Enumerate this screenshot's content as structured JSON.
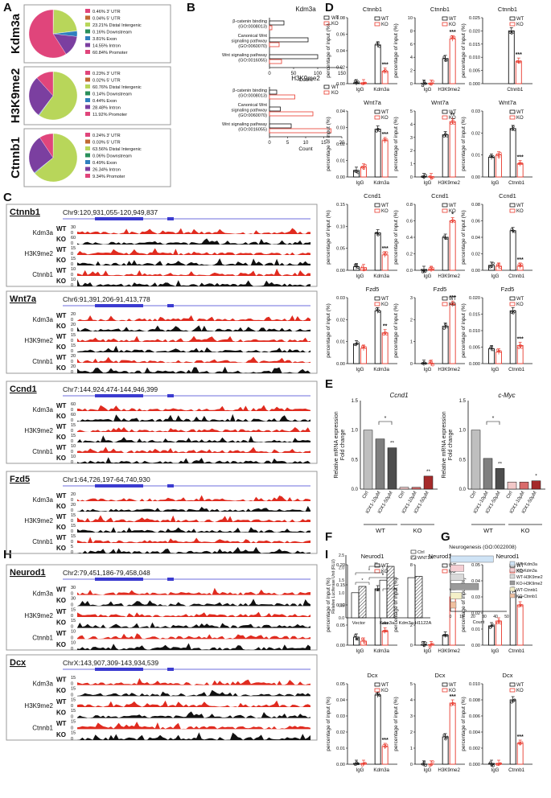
{
  "colors": {
    "wt": "#111111",
    "ko": "#e8392d",
    "pie_utr3": "#e0457b",
    "pie_utr5": "#c06a32",
    "pie_intergenic": "#b8d65a",
    "pie_downstream": "#2a8f5b",
    "pie_exon": "#2f7fbf",
    "pie_intron": "#7b3fa0",
    "pie_promoter": "#e0457b",
    "track_red": "#e02b1f",
    "track_black": "#111111",
    "bar_grey1": "#bfbfbf",
    "bar_grey2": "#7f7f7f",
    "bar_grey3": "#4d4d4d",
    "bar_red1": "#f2c8c8",
    "bar_red2": "#d96a6a",
    "bar_red3": "#a52a2a",
    "blue_gene": "#3b3bd0"
  },
  "panels": {
    "A": "A",
    "B": "B",
    "C": "C",
    "D": "D",
    "E": "E",
    "F": "F",
    "G": "G",
    "H": "H",
    "I": "I"
  },
  "pies": [
    {
      "label": "Kdm3a",
      "slices": [
        {
          "name": "3' UTR",
          "value": 0.46,
          "text": "0.46%"
        },
        {
          "name": "5' UTR",
          "value": 0.04,
          "text": "0.04%"
        },
        {
          "name": "Distal Intergenic",
          "value": 23.21,
          "text": "23.21%"
        },
        {
          "name": "Downstream",
          "value": 0.16,
          "text": "0.16%"
        },
        {
          "name": "Exon",
          "value": 3.81,
          "text": "3.81%"
        },
        {
          "name": "Intron",
          "value": 14.55,
          "text": "14.55%"
        },
        {
          "name": "Promoter",
          "value": 60.84,
          "text": "60.84%"
        }
      ]
    },
    {
      "label": "H3K9me2",
      "slices": [
        {
          "name": "3' UTR",
          "value": 0.23,
          "text": "0.23%"
        },
        {
          "name": "5' UTR",
          "value": 0.02,
          "text": "0.02%"
        },
        {
          "name": "Distal Intergenic",
          "value": 60.76,
          "text": "60.76%"
        },
        {
          "name": "Downstream",
          "value": 0.14,
          "text": "0.14%"
        },
        {
          "name": "Exon",
          "value": 0.44,
          "text": "0.44%"
        },
        {
          "name": "Intron",
          "value": 28.48,
          "text": "28.48%"
        },
        {
          "name": "Promoter",
          "value": 11.92,
          "text": "11.92%"
        }
      ]
    },
    {
      "label": "Ctnnb1",
      "slices": [
        {
          "name": "3' UTR",
          "value": 0.24,
          "text": "0.24%"
        },
        {
          "name": "5' UTR",
          "value": 0.03,
          "text": "0.03%"
        },
        {
          "name": "Distal Intergenic",
          "value": 63.56,
          "text": "63.56%"
        },
        {
          "name": "Downstream",
          "value": 0.06,
          "text": "0.06%"
        },
        {
          "name": "Exon",
          "value": 0.49,
          "text": "0.49%"
        },
        {
          "name": "Intron",
          "value": 26.34,
          "text": "26.34%"
        },
        {
          "name": "Promoter",
          "value": 9.34,
          "text": "9.34%"
        }
      ]
    }
  ],
  "go": [
    {
      "title": "Kdm3a",
      "xlabel": "Count",
      "ticks": [
        "0",
        "50",
        "100",
        "150"
      ],
      "max": 150,
      "terms": [
        {
          "lines": [
            "β-catenin binding",
            "(GO:0008013)"
          ],
          "wt": 30,
          "ko": 5
        },
        {
          "lines": [
            "Canonical Wnt",
            "signaling pathway",
            "(GO:0060070)"
          ],
          "wt": 80,
          "ko": 20
        },
        {
          "lines": [
            "Wnt signaling pathway",
            "(GO:0016055)"
          ],
          "wt": 100,
          "ko": 25
        }
      ]
    },
    {
      "title": "H3K9me2",
      "xlabel": "Count",
      "ticks": [
        "0",
        "5",
        "10",
        "15",
        "20"
      ],
      "max": 20,
      "terms": [
        {
          "lines": [
            "β-catenin binding",
            "(GO:0008013)"
          ],
          "wt": 2,
          "ko": 7
        },
        {
          "lines": [
            "Canonical Wnt",
            "signaling pathway",
            "(GO:0060070)"
          ],
          "wt": 3,
          "ko": 12
        },
        {
          "lines": [
            "Wnt signaling pathway",
            "(GO:0016055)"
          ],
          "wt": 6,
          "ko": 17
        }
      ]
    }
  ],
  "legend": {
    "wt": "WT",
    "ko": "KO"
  },
  "chart_data": [
    {
      "type": "bar",
      "panel": "D",
      "gene": "Ctnnb1",
      "ylabel": "percentage of input (%)",
      "ylim": [
        0,
        0.08
      ],
      "yticks": [
        "0.00",
        "0.02",
        "0.04",
        "0.06",
        "0.08"
      ],
      "categories": [
        "IgG",
        "Kdm3a"
      ],
      "wt": [
        0.001,
        0.047
      ],
      "ko": [
        0.001,
        0.015
      ],
      "sig": [
        "",
        "***"
      ]
    },
    {
      "type": "bar",
      "panel": "D",
      "gene": "Ctnnb1",
      "ylabel": "percentage of input (%)",
      "ylim": [
        0,
        10
      ],
      "yticks": [
        "0",
        "2",
        "4",
        "6",
        "8",
        "10"
      ],
      "categories": [
        "IgG",
        "H3K9me2"
      ],
      "wt": [
        0.05,
        3.8
      ],
      "ko": [
        0.05,
        6.8
      ],
      "sig": [
        "",
        "***"
      ]
    },
    {
      "type": "bar",
      "panel": "D",
      "gene": "Ctnnb1",
      "ylabel": "percentage of input (%)",
      "ylim": [
        0,
        0.025
      ],
      "yticks": [
        "0.000",
        "0.005",
        "0.010",
        "0.015",
        "0.020",
        "0.025"
      ],
      "categories": [
        "Ctnnb1"
      ],
      "wt": [
        0.02
      ],
      "ko": [
        0.0085
      ],
      "sig": [
        "***"
      ]
    },
    {
      "type": "bar",
      "panel": "D",
      "gene": "Wnt7a",
      "ylabel": "percentage of input (%)",
      "ylim": [
        0,
        0.04
      ],
      "yticks": [
        "0.00",
        "0.01",
        "0.02",
        "0.03",
        "0.04"
      ],
      "categories": [
        "IgG",
        "Kdm3a"
      ],
      "wt": [
        0.004,
        0.029
      ],
      "ko": [
        0.006,
        0.022
      ],
      "sig": [
        "",
        "***"
      ]
    },
    {
      "type": "bar",
      "panel": "D",
      "gene": "Wnt7a",
      "ylabel": "percentage of input (%)",
      "ylim": [
        0,
        5
      ],
      "yticks": [
        "0",
        "1",
        "2",
        "3",
        "4",
        "5"
      ],
      "categories": [
        "IgG",
        "H3K9me2"
      ],
      "wt": [
        0.02,
        3.2
      ],
      "ko": [
        0.02,
        4.2
      ],
      "sig": [
        "",
        "**"
      ]
    },
    {
      "type": "bar",
      "panel": "D",
      "gene": "Wnt7a",
      "ylabel": "percentage of input (%)",
      "ylim": [
        0,
        0.03
      ],
      "yticks": [
        "0.00",
        "0.01",
        "0.02",
        "0.03"
      ],
      "categories": [
        "IgG",
        "Ctnnb1"
      ],
      "wt": [
        0.009,
        0.022
      ],
      "ko": [
        0.01,
        0.006
      ],
      "sig": [
        "",
        "***"
      ]
    },
    {
      "type": "bar",
      "panel": "D",
      "gene": "Ccnd1",
      "ylabel": "percentage of input (%)",
      "ylim": [
        0,
        0.15
      ],
      "yticks": [
        "0.00",
        "0.05",
        "0.10",
        "0.15"
      ],
      "categories": [
        "IgG",
        "Kdm3a"
      ],
      "wt": [
        0.008,
        0.085
      ],
      "ko": [
        0.006,
        0.035
      ],
      "sig": [
        "",
        "***"
      ]
    },
    {
      "type": "bar",
      "panel": "D",
      "gene": "Ccnd1",
      "ylabel": "percentage of input (%)",
      "ylim": [
        0,
        0.8
      ],
      "yticks": [
        "0.0",
        "0.2",
        "0.4",
        "0.6",
        "0.8"
      ],
      "categories": [
        "IgG",
        "H3K9me2"
      ],
      "wt": [
        0.01,
        0.4
      ],
      "ko": [
        0.01,
        0.6
      ],
      "sig": [
        "",
        "*"
      ]
    },
    {
      "type": "bar",
      "panel": "D",
      "gene": "Ccnd1",
      "ylabel": "percentage of input (%)",
      "ylim": [
        0,
        0.08
      ],
      "yticks": [
        "0.00",
        "0.02",
        "0.04",
        "0.06",
        "0.08"
      ],
      "categories": [
        "IgG",
        "Ctnnb1"
      ],
      "wt": [
        0.006,
        0.048
      ],
      "ko": [
        0.005,
        0.005
      ],
      "sig": [
        "",
        "***"
      ]
    },
    {
      "type": "bar",
      "panel": "D",
      "gene": "Fzd5",
      "ylabel": "percentage of input (%)",
      "ylim": [
        0,
        0.03
      ],
      "yticks": [
        "0.00",
        "0.01",
        "0.02",
        "0.03"
      ],
      "categories": [
        "IgG",
        "Kdm3a"
      ],
      "wt": [
        0.009,
        0.024
      ],
      "ko": [
        0.007,
        0.014
      ],
      "sig": [
        "",
        "**"
      ]
    },
    {
      "type": "bar",
      "panel": "D",
      "gene": "Fzd5",
      "ylabel": "percentage of input (%)",
      "ylim": [
        0,
        3
      ],
      "yticks": [
        "0",
        "1",
        "2",
        "3"
      ],
      "categories": [
        "IgG",
        "H3K9me2"
      ],
      "wt": [
        0.01,
        1.7
      ],
      "ko": [
        0.01,
        2.7
      ],
      "sig": [
        "",
        "***"
      ]
    },
    {
      "type": "bar",
      "panel": "D",
      "gene": "Fzd5",
      "ylabel": "percentage of input (%)",
      "ylim": [
        0,
        0.02
      ],
      "yticks": [
        "0.000",
        "0.005",
        "0.010",
        "0.015",
        "0.020"
      ],
      "categories": [
        "IgG",
        "Ctnnb1"
      ],
      "wt": [
        0.0045,
        0.016
      ],
      "ko": [
        0.0035,
        0.0055
      ],
      "sig": [
        "",
        "***"
      ]
    },
    {
      "type": "bar",
      "panel": "I",
      "gene": "Neurod1",
      "ylabel": "percentage of input (%)",
      "ylim": [
        0,
        0.2
      ],
      "yticks": [
        "0.00",
        "0.05",
        "0.10",
        "0.15",
        "0.20"
      ],
      "categories": [
        "IgG",
        "Kdm3a"
      ],
      "wt": [
        0.02,
        0.14
      ],
      "ko": [
        0.01,
        0.035
      ],
      "sig": [
        "",
        "***"
      ]
    },
    {
      "type": "bar",
      "panel": "I",
      "gene": "Neurod1",
      "ylabel": "percentage of input (%)",
      "ylim": [
        0,
        8
      ],
      "yticks": [
        "0",
        "2",
        "4",
        "6",
        "8"
      ],
      "categories": [
        "IgG",
        "H3K9me2"
      ],
      "wt": [
        0.05,
        1.0
      ],
      "ko": [
        0.05,
        4.8
      ],
      "sig": [
        "",
        "***"
      ]
    },
    {
      "type": "bar",
      "panel": "I",
      "gene": "Neurod1",
      "ylabel": "percentage of input (%)",
      "ylim": [
        0,
        0.05
      ],
      "yticks": [
        "0.00",
        "0.01",
        "0.02",
        "0.03",
        "0.04",
        "0.05"
      ],
      "categories": [
        "IgG",
        "Ctnnb1"
      ],
      "wt": [
        0.012,
        0.034
      ],
      "ko": [
        0.015,
        0.025
      ],
      "sig": [
        "",
        "**"
      ]
    },
    {
      "type": "bar",
      "panel": "I",
      "gene": "Dcx",
      "ylabel": "percentage of input (%)",
      "ylim": [
        0,
        0.05
      ],
      "yticks": [
        "0.00",
        "0.01",
        "0.02",
        "0.03",
        "0.04",
        "0.05"
      ],
      "categories": [
        "IgG",
        "Kdm3a"
      ],
      "wt": [
        0.0005,
        0.043
      ],
      "ko": [
        0.0005,
        0.011
      ],
      "sig": [
        "",
        "***"
      ]
    },
    {
      "type": "bar",
      "panel": "I",
      "gene": "Dcx",
      "ylabel": "percentage of input (%)",
      "ylim": [
        0,
        5
      ],
      "yticks": [
        "0",
        "1",
        "2",
        "3",
        "4",
        "5"
      ],
      "categories": [
        "IgG",
        "H3K9me2"
      ],
      "wt": [
        0.01,
        1.7
      ],
      "ko": [
        0.01,
        3.8
      ],
      "sig": [
        "",
        "***"
      ]
    },
    {
      "type": "bar",
      "panel": "I",
      "gene": "Dcx",
      "ylabel": "percentage of input (%)",
      "ylim": [
        0,
        0.01
      ],
      "yticks": [
        "0.000",
        "0.002",
        "0.004",
        "0.006",
        "0.008",
        "0.010"
      ],
      "categories": [
        "IgG",
        "Ctnnb1"
      ],
      "wt": [
        0.0001,
        0.008
      ],
      "ko": [
        0.0001,
        0.0026
      ],
      "sig": [
        "",
        "***"
      ]
    }
  ],
  "panelE": [
    {
      "title": "Ccnd1",
      "ylabel1": "Relative mRNA expression",
      "ylabel2": "Fold change",
      "ylim": [
        0,
        1.5
      ],
      "yticks": [
        "0.0",
        "0.5",
        "1.0",
        "1.5"
      ],
      "categories": [
        "Ctrl",
        "IOX1-10μM",
        "IOX1-50μM",
        "Ctrl",
        "IOX1-10μM",
        "IOX1-50μM"
      ],
      "values": [
        1.0,
        0.85,
        0.7,
        0.03,
        0.03,
        0.22
      ],
      "sig": [
        "",
        "",
        "**",
        "",
        "",
        "**"
      ],
      "bracket": "*",
      "groups": [
        "WT",
        "KO"
      ]
    },
    {
      "title": "c-Myc",
      "ylabel1": "Relative mRNA expression",
      "ylabel2": "Fold change",
      "ylim": [
        0,
        1.5
      ],
      "yticks": [
        "0.0",
        "0.5",
        "1.0",
        "1.5"
      ],
      "categories": [
        "Ctrl",
        "IOX1-10μM",
        "IOX1-50μM",
        "Ctrl",
        "IOX1-10μM",
        "IOX1-50μM"
      ],
      "values": [
        1.0,
        0.52,
        0.35,
        0.12,
        0.12,
        0.14
      ],
      "sig": [
        "",
        "",
        "**",
        "",
        "",
        "*"
      ],
      "bracket": "*",
      "groups": [
        "WT",
        "KO"
      ]
    }
  ],
  "panelF": {
    "ylabel": "Relative Luciferase Unit (RLU)",
    "ylim": [
      0,
      2.5
    ],
    "yticks": [
      "0.0",
      "0.5",
      "1.0",
      "1.5",
      "2.0",
      "2.5"
    ],
    "categories": [
      "Vector",
      "Kdm3a",
      "Kdm3a-H1122A"
    ],
    "ctrl": [
      1.0,
      1.5,
      1.6
    ],
    "wnt": [
      1.25,
      2.05,
      1.65
    ],
    "legend": [
      "Ctrl",
      "WNT3A"
    ],
    "stars": [
      "*",
      "*",
      "**",
      "*",
      "*"
    ]
  },
  "panelG": {
    "title": "Neurogenesis (GO:0022008)",
    "xlabel": "Count",
    "ticks": [
      "0",
      "10",
      "20",
      "30",
      "40",
      "50"
    ],
    "max": 50,
    "series": [
      {
        "name": "WT-Kdm3a",
        "value": 38,
        "color": "#cfe3f5"
      },
      {
        "name": "KO-Kdm3a",
        "value": 12,
        "color": "#f5cfd4"
      },
      {
        "name": "WT-H3K9me2",
        "value": 12,
        "color": "#d9d9d9"
      },
      {
        "name": "KO-H3K9me2",
        "value": 25,
        "color": "#9a9a9a"
      },
      {
        "name": "WT-Ctnnb1",
        "value": 10,
        "color": "#f4f0c8"
      },
      {
        "name": "KO-Ctnnb1",
        "value": 5,
        "color": "#f0c0a0"
      }
    ]
  },
  "tracks": [
    {
      "gene": "Ctnnb1",
      "coord": "Chr9:120,931,055-120,949,837",
      "rows": [
        {
          "grp": "Kdm3a",
          "t": "WT",
          "max": "30"
        },
        {
          "grp": "",
          "t": "KO",
          "max": "60"
        },
        {
          "grp": "H3K9me2",
          "t": "WT",
          "max": "15"
        },
        {
          "grp": "",
          "t": "KO",
          "max": "15"
        },
        {
          "grp": "Ctnnb1",
          "t": "WT",
          "max": "10"
        },
        {
          "grp": "",
          "t": "KO",
          "max": "10"
        }
      ]
    },
    {
      "gene": "Wnt7a",
      "coord": "Chr6:91,391,206-91,413,778",
      "rows": [
        {
          "grp": "Kdm3a",
          "t": "WT",
          "max": "20"
        },
        {
          "grp": "",
          "t": "KO",
          "max": "20"
        },
        {
          "grp": "H3K9me2",
          "t": "WT",
          "max": "15"
        },
        {
          "grp": "",
          "t": "KO",
          "max": "15"
        },
        {
          "grp": "Ctnnb1",
          "t": "WT",
          "max": "20"
        },
        {
          "grp": "",
          "t": "KO",
          "max": "20"
        }
      ]
    },
    {
      "gene": "Ccnd1",
      "coord": "Chr7:144,924,474-144,946,399",
      "rows": [
        {
          "grp": "Kdm3a",
          "t": "WT",
          "max": "60"
        },
        {
          "grp": "",
          "t": "KO",
          "max": "60"
        },
        {
          "grp": "H3K9me2",
          "t": "WT",
          "max": "15"
        },
        {
          "grp": "",
          "t": "KO",
          "max": "15"
        },
        {
          "grp": "Ctnnb1",
          "t": "WT",
          "max": "10"
        },
        {
          "grp": "",
          "t": "KO",
          "max": "10"
        }
      ]
    },
    {
      "gene": "Fzd5",
      "coord": "Chr1:64,726,197-64,740,930",
      "rows": [
        {
          "grp": "Kdm3a",
          "t": "WT",
          "max": "20"
        },
        {
          "grp": "",
          "t": "KO",
          "max": "20"
        },
        {
          "grp": "H3K9me2",
          "t": "WT",
          "max": "15"
        },
        {
          "grp": "",
          "t": "KO",
          "max": "15"
        },
        {
          "grp": "Ctnnb1",
          "t": "WT",
          "max": "15"
        },
        {
          "grp": "",
          "t": "KO",
          "max": "5"
        }
      ]
    },
    {
      "gene": "Neurod1",
      "coord": "Chr2:79,451,186-79,458,048",
      "rows": [
        {
          "grp": "Kdm3a",
          "t": "WT",
          "max": "30"
        },
        {
          "grp": "",
          "t": "KO",
          "max": "30"
        },
        {
          "grp": "H3K9me2",
          "t": "WT",
          "max": "15"
        },
        {
          "grp": "",
          "t": "KO",
          "max": "15"
        },
        {
          "grp": "Ctnnb1",
          "t": "WT",
          "max": "10"
        },
        {
          "grp": "",
          "t": "KO",
          "max": "10"
        }
      ]
    },
    {
      "gene": "Dcx",
      "coord": "ChrX:143,907,309-143,934,539",
      "rows": [
        {
          "grp": "Kdm3a",
          "t": "WT",
          "max": "15"
        },
        {
          "grp": "",
          "t": "KO",
          "max": "15"
        },
        {
          "grp": "H3K9me2",
          "t": "WT",
          "max": "15"
        },
        {
          "grp": "",
          "t": "KO",
          "max": "15"
        },
        {
          "grp": "Ctnnb1",
          "t": "WT",
          "max": "15"
        },
        {
          "grp": "",
          "t": "KO",
          "max": "15"
        }
      ]
    }
  ]
}
